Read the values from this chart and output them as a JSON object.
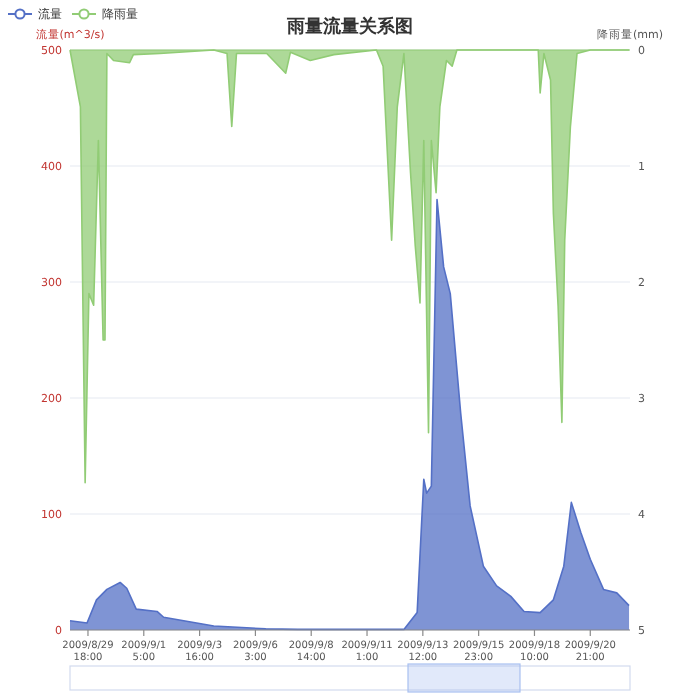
{
  "chart_data": {
    "type": "area",
    "title": "雨量流量关系图",
    "ylabel": "流量(m^3/s)",
    "y2label": "降雨量(mm)",
    "xlim": [
      "2009-08-28T23:00",
      "2009-09-22T15:00"
    ],
    "xticks": [
      {
        "value": "2009-08-29T18:00",
        "label": "2009/8/29\n18:00"
      },
      {
        "value": "2009-09-01T05:00",
        "label": "2009/9/1\n5:00"
      },
      {
        "value": "2009-09-03T16:00",
        "label": "2009/9/3\n16:00"
      },
      {
        "value": "2009-09-06T03:00",
        "label": "2009/9/6\n3:00"
      },
      {
        "value": "2009-09-08T14:00",
        "label": "2009/9/8\n14:00"
      },
      {
        "value": "2009-09-11T01:00",
        "label": "2009/9/11\n1:00"
      },
      {
        "value": "2009-09-13T12:00",
        "label": "2009/9/13\n12:00"
      },
      {
        "value": "2009-09-15T23:00",
        "label": "2009/9/15\n23:00"
      },
      {
        "value": "2009-09-18T10:00",
        "label": "2009/9/18\n10:00"
      },
      {
        "value": "2009-09-20T21:00",
        "label": "2009/9/20\n21:00"
      }
    ],
    "ylim": [
      0,
      500
    ],
    "yticks": [
      0,
      100,
      200,
      300,
      400,
      500
    ],
    "y2lim": [
      5,
      0
    ],
    "y2ticks": [
      5,
      4,
      3,
      2,
      1,
      0
    ],
    "grid": "y",
    "legend": "top left",
    "marker": "none",
    "series": [
      {
        "name": "流量",
        "color": "#5470c6",
        "x": [
          "2009-08-28T23:00",
          "2009-08-29T17:00",
          "2009-08-30T03:00",
          "2009-08-30T14:00",
          "2009-08-31T04:00",
          "2009-08-31T11:00",
          "2009-08-31T21:00",
          "2009-09-01T19:00",
          "2009-09-02T02:00",
          "2009-09-04T07:00",
          "2009-09-06T14:00",
          "2009-09-08T00:00",
          "2009-09-12T16:00",
          "2009-09-13T06:00",
          "2009-09-13T13:00",
          "2009-09-13T16:00",
          "2009-09-13T21:00",
          "2009-09-14T03:00",
          "2009-09-14T10:00",
          "2009-09-14T17:00",
          "2009-09-15T04:00",
          "2009-09-15T14:00",
          "2009-09-16T04:00",
          "2009-09-16T18:00",
          "2009-09-17T09:00",
          "2009-09-17T23:00",
          "2009-09-18T16:00",
          "2009-09-19T06:00",
          "2009-09-19T17:00",
          "2009-09-20T01:00",
          "2009-09-20T11:00",
          "2009-09-20T21:00",
          "2009-09-21T11:00",
          "2009-09-22T01:00",
          "2009-09-22T14:00"
        ],
        "values": [
          8,
          6,
          26,
          35,
          41,
          36,
          18,
          16,
          11,
          3.5,
          1,
          0.5,
          0.5,
          15,
          130,
          118,
          124,
          371,
          313,
          290,
          187,
          107,
          55,
          38,
          29,
          16,
          15,
          26,
          55,
          110,
          84,
          61,
          35,
          32,
          21
        ]
      },
      {
        "name": "降雨量",
        "color": "#91cc75",
        "axis": "y2",
        "x": [
          "2009-08-28T23:00",
          "2009-08-29T10:00",
          "2009-08-29T15:00",
          "2009-08-29T19:00",
          "2009-08-30T00:00",
          "2009-08-30T05:00",
          "2009-08-30T10:00",
          "2009-08-30T12:00",
          "2009-08-30T14:00",
          "2009-08-30T21:00",
          "2009-08-31T14:00",
          "2009-08-31T18:00",
          "2009-09-01T22:00",
          "2009-09-04T07:00",
          "2009-09-04T21:00",
          "2009-09-05T02:00",
          "2009-09-05T07:00",
          "2009-09-06T15:00",
          "2009-09-07T11:00",
          "2009-09-07T16:00",
          "2009-09-08T13:00",
          "2009-09-09T14:00",
          "2009-09-11T11:00",
          "2009-09-11T18:00",
          "2009-09-12T03:00",
          "2009-09-12T09:00",
          "2009-09-12T16:00",
          "2009-09-12T23:00",
          "2009-09-13T04:00",
          "2009-09-13T09:00",
          "2009-09-13T13:00",
          "2009-09-13T18:00",
          "2009-09-13T21:00",
          "2009-09-14T02:00",
          "2009-09-14T06:00",
          "2009-09-14T13:00",
          "2009-09-14T19:00",
          "2009-09-15T00:00",
          "2009-09-16T04:00",
          "2009-09-18T14:00",
          "2009-09-18T16:00",
          "2009-09-18T20:00",
          "2009-09-19T03:00",
          "2009-09-19T06:00",
          "2009-09-19T11:00",
          "2009-09-19T15:00",
          "2009-09-19T18:00",
          "2009-09-20T00:00",
          "2009-09-20T07:00",
          "2009-09-20T21:00",
          "2009-09-22T14:00"
        ],
        "values": [
          0,
          0.49,
          3.73,
          2.1,
          2.2,
          0.78,
          2.5,
          2.5,
          0.03,
          0.09,
          0.11,
          0.04,
          0.03,
          0,
          0.03,
          0.66,
          0.03,
          0.03,
          0.2,
          0.02,
          0.09,
          0.04,
          0,
          0.14,
          1.64,
          0.49,
          0.03,
          1.06,
          1.69,
          2.18,
          0.78,
          3.3,
          0.78,
          1.23,
          0.49,
          0.09,
          0.14,
          0,
          0,
          0,
          0.37,
          0.03,
          0.26,
          1.41,
          2.21,
          3.21,
          1.64,
          0.66,
          0.03,
          0,
          0
        ]
      }
    ]
  }
}
